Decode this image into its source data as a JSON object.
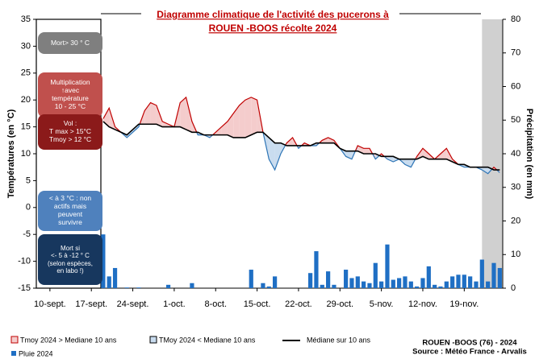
{
  "chart_data": {
    "type": "climate",
    "title": [
      "Diagramme climatique de l'activité des pucerons à",
      "ROUEN -BOOS récolte 2024"
    ],
    "y_label": "Températures (en °C)",
    "y2_label": "Précipitation (en mm)",
    "xlim": [
      -2.3,
      76.5
    ],
    "xticks": [
      {
        "value": 0,
        "label": "10-sept."
      },
      {
        "value": 7,
        "label": "17-sept."
      },
      {
        "value": 14,
        "label": "24-sept."
      },
      {
        "value": 21,
        "label": "1-oct."
      },
      {
        "value": 28,
        "label": "8-oct."
      },
      {
        "value": 35,
        "label": "15-oct."
      },
      {
        "value": 42,
        "label": "22-oct."
      },
      {
        "value": 49,
        "label": "29-oct."
      },
      {
        "value": 56,
        "label": "5-nov."
      },
      {
        "value": 63,
        "label": "12-nov."
      },
      {
        "value": 70,
        "label": "19-nov."
      }
    ],
    "ylim": [
      -15,
      35
    ],
    "yticks": [
      -15,
      -10,
      -5,
      0,
      5,
      10,
      15,
      20,
      25,
      30,
      35
    ],
    "y2lim": [
      0,
      80
    ],
    "y2ticks": [
      0,
      10,
      20,
      30,
      40,
      50,
      60,
      70,
      80
    ],
    "shaded_x": [
      73,
      76.5
    ],
    "x": [
      9,
      10,
      11,
      12,
      13,
      14,
      15,
      16,
      17,
      18,
      19,
      20,
      21,
      22,
      23,
      24,
      25,
      26,
      27,
      28,
      29,
      30,
      31,
      32,
      33,
      34,
      35,
      36,
      37,
      38,
      39,
      40,
      41,
      42,
      43,
      44,
      45,
      46,
      47,
      48,
      49,
      50,
      51,
      52,
      53,
      54,
      55,
      56,
      57,
      58,
      59,
      60,
      61,
      62,
      63,
      64,
      65,
      66,
      67,
      68,
      69,
      70,
      71,
      72,
      73,
      74,
      75,
      76
    ],
    "tmoy": {
      "color_above": "#c00000",
      "color_below": "#2e75b6",
      "fill_above": "#f4cccc",
      "fill_below": "#c9dcef",
      "values": [
        16.5,
        18.5,
        15,
        14,
        13,
        14,
        15,
        18,
        19.5,
        19,
        16,
        15.5,
        15,
        19.5,
        20.5,
        16,
        13.5,
        13.5,
        13,
        14,
        15,
        16,
        17.5,
        19,
        20,
        20.5,
        20,
        14,
        9,
        7,
        10,
        12,
        13,
        11,
        12,
        11.5,
        11.5,
        12.5,
        13,
        12.5,
        11,
        9.5,
        9,
        11.5,
        11,
        11,
        9,
        10,
        9,
        8.5,
        9,
        8,
        7.5,
        9.5,
        11,
        10,
        9,
        10,
        11,
        9,
        8,
        7.5,
        7.5,
        7.5,
        7,
        6.3,
        7.5,
        6.5
      ]
    },
    "median": {
      "name": "Médiane sur 10 ans",
      "color": "#000000",
      "values": [
        16,
        15,
        14.5,
        14,
        13.5,
        14.5,
        15.5,
        15.5,
        15.5,
        15.5,
        15,
        15,
        15,
        15,
        14.5,
        14,
        14,
        13.5,
        13.5,
        13.5,
        13.5,
        13.5,
        13,
        13,
        13,
        13.5,
        14,
        14,
        13,
        12,
        12,
        11.5,
        11.5,
        11.5,
        11.5,
        11.5,
        12,
        12,
        12,
        12,
        11,
        10.5,
        10.5,
        10.5,
        10,
        10,
        10,
        9.5,
        9.5,
        9.5,
        9,
        9,
        9,
        9,
        9.5,
        9,
        9,
        9,
        9,
        8.5,
        8,
        8,
        7.5,
        7.5,
        7.5,
        7.5,
        7,
        7
      ]
    },
    "rain": {
      "name": "Pluie 2024",
      "color": "#1f6fc4",
      "axis": "y2",
      "values": [
        16,
        3.5,
        6,
        0,
        0.2,
        0,
        0.2,
        0,
        0,
        0,
        0,
        1,
        0,
        0,
        0,
        1.5,
        0,
        0,
        0,
        0,
        0,
        0,
        0,
        0,
        0,
        5.5,
        0,
        1.5,
        0.5,
        3.5,
        0,
        0,
        0,
        0,
        0,
        4.5,
        11,
        1,
        5,
        1,
        0,
        5.5,
        3,
        3.5,
        2,
        1.5,
        7.5,
        2,
        13,
        2.5,
        3,
        3.5,
        2,
        0.5,
        3,
        6.5,
        1,
        0.5,
        2,
        3.5,
        4,
        4,
        3.5,
        2,
        8.5,
        2,
        7.5,
        6
      ]
    },
    "fill_legend": [
      "Tmoy 2024 > Mediane 10 ans",
      "TMoy 2024 < Mediane 10 ans"
    ],
    "annotations": [
      {
        "text": "Mort> 30 ° C",
        "color": "#7f7f7f"
      },
      {
        "text": "Multiplication\n↑avec\ntempérature\n10 - 25 °C",
        "color": "#c0504d"
      },
      {
        "text": "Vol :\nT max > 15°C\nTmoy > 12 °C",
        "color": "#8b1a1a"
      },
      {
        "text": "< à 3 °C : non\nactifs mais\npeuvent\nsurvivre",
        "color": "#4f81bd"
      },
      {
        "text": "Mort  si\n<- 5 à -12 ° C\n(selon espèces,\nen labo !)",
        "color": "#17375e"
      }
    ],
    "source": [
      "ROUEN -BOOS (76) - 2024",
      "Source : Météo France - Arvalis"
    ]
  }
}
